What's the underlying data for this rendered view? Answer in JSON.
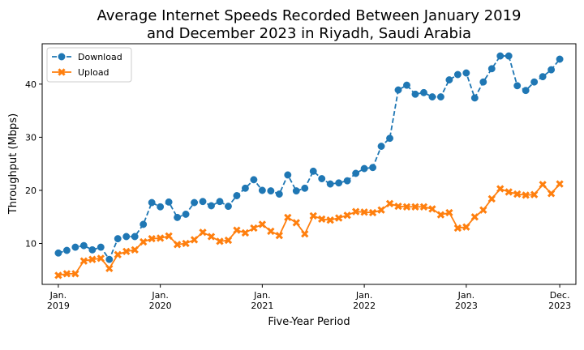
{
  "chart_data": {
    "type": "line",
    "title_lines": [
      "Average Internet Speeds Recorded Between January 2019",
      "and December 2023 in Riyadh, Saudi Arabia"
    ],
    "xlabel": "Five-Year Period",
    "ylabel": "Throughput (Mbps)",
    "ylim": [
      2.3,
      47.6
    ],
    "yticks": [
      10,
      20,
      30,
      40
    ],
    "xlim": [
      -1.9,
      60.9
    ],
    "xticks": [
      {
        "index": 0,
        "label": [
          "Jan.",
          "2019"
        ]
      },
      {
        "index": 12,
        "label": [
          "Jan.",
          "2020"
        ]
      },
      {
        "index": 24,
        "label": [
          "Jan.",
          "2021"
        ]
      },
      {
        "index": 36,
        "label": [
          "Jan.",
          "2022"
        ]
      },
      {
        "index": 48,
        "label": [
          "Jan.",
          "2023"
        ]
      },
      {
        "index": 59,
        "label": [
          "Dec.",
          "2023"
        ]
      }
    ],
    "legend_position": "top-left",
    "grid": false,
    "series": [
      {
        "name": "Download",
        "color": "#1f77b4",
        "line_style": "dashed",
        "marker": "circle",
        "values": [
          8.2,
          8.7,
          9.3,
          9.6,
          8.8,
          9.3,
          7.0,
          10.9,
          11.3,
          11.3,
          13.6,
          17.7,
          16.9,
          17.8,
          14.9,
          15.5,
          17.7,
          17.9,
          17.1,
          17.9,
          17.0,
          19.0,
          20.4,
          22.0,
          20.0,
          19.9,
          19.3,
          22.9,
          19.9,
          20.4,
          23.6,
          22.2,
          21.2,
          21.4,
          21.8,
          23.2,
          24.1,
          24.3,
          28.3,
          29.8,
          38.9,
          39.8,
          38.1,
          38.4,
          37.6,
          37.6,
          40.8,
          41.8,
          42.1,
          37.4,
          40.4,
          42.9,
          45.3,
          45.3,
          39.7,
          38.8,
          40.4,
          41.4,
          42.7,
          44.7
        ]
      },
      {
        "name": "Upload",
        "color": "#ff7f0e",
        "line_style": "solid",
        "marker": "x",
        "values": [
          4.0,
          4.3,
          4.3,
          6.7,
          7.0,
          7.2,
          5.3,
          7.9,
          8.5,
          8.8,
          10.3,
          10.9,
          11.0,
          11.4,
          9.8,
          10.0,
          10.7,
          12.1,
          11.3,
          10.4,
          10.6,
          12.5,
          12.0,
          12.9,
          13.6,
          12.3,
          11.5,
          14.9,
          13.9,
          11.8,
          15.2,
          14.6,
          14.4,
          14.8,
          15.3,
          16.0,
          15.9,
          15.8,
          16.3,
          17.5,
          17.0,
          16.9,
          16.9,
          16.9,
          16.5,
          15.4,
          15.8,
          12.9,
          13.1,
          15.0,
          16.3,
          18.4,
          20.3,
          19.7,
          19.3,
          19.1,
          19.2,
          21.1,
          19.4,
          21.2
        ]
      }
    ]
  }
}
